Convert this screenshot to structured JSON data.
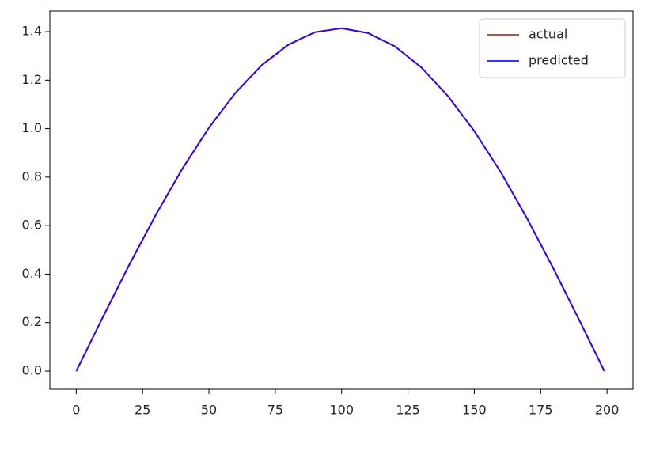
{
  "chart_data": {
    "type": "line",
    "x": [
      0,
      10,
      20,
      30,
      40,
      50,
      60,
      70,
      80,
      90,
      100,
      110,
      120,
      130,
      140,
      150,
      160,
      170,
      180,
      190,
      199
    ],
    "series": [
      {
        "name": "actual",
        "color": "#ff0000",
        "values": [
          0,
          0.222,
          0.439,
          0.645,
          0.835,
          1.004,
          1.148,
          1.263,
          1.347,
          1.398,
          1.414,
          1.394,
          1.34,
          1.253,
          1.135,
          0.99,
          0.82,
          0.627,
          0.419,
          0.2,
          0
        ]
      },
      {
        "name": "predicted",
        "color": "#0000ff",
        "values": [
          0,
          0.222,
          0.439,
          0.645,
          0.835,
          1.004,
          1.148,
          1.263,
          1.347,
          1.398,
          1.414,
          1.394,
          1.34,
          1.253,
          1.135,
          0.99,
          0.82,
          0.627,
          0.419,
          0.2,
          0
        ]
      }
    ],
    "xlim": [
      -9.95,
      209.8
    ],
    "ylim": [
      -0.075,
      1.485
    ],
    "xticks": [
      0,
      25,
      50,
      75,
      100,
      125,
      150,
      175,
      200
    ],
    "yticks": [
      {
        "value": 0,
        "label": "0.0"
      },
      {
        "value": 0.2,
        "label": "0.2"
      },
      {
        "value": 0.4,
        "label": "0.4"
      },
      {
        "value": 0.6,
        "label": "0.6"
      },
      {
        "value": 0.8,
        "label": "0.8"
      },
      {
        "value": 1,
        "label": "1.0"
      },
      {
        "value": 1.2,
        "label": "1.2"
      },
      {
        "value": 1.4,
        "label": "1.4"
      }
    ],
    "legend": "upper right"
  }
}
